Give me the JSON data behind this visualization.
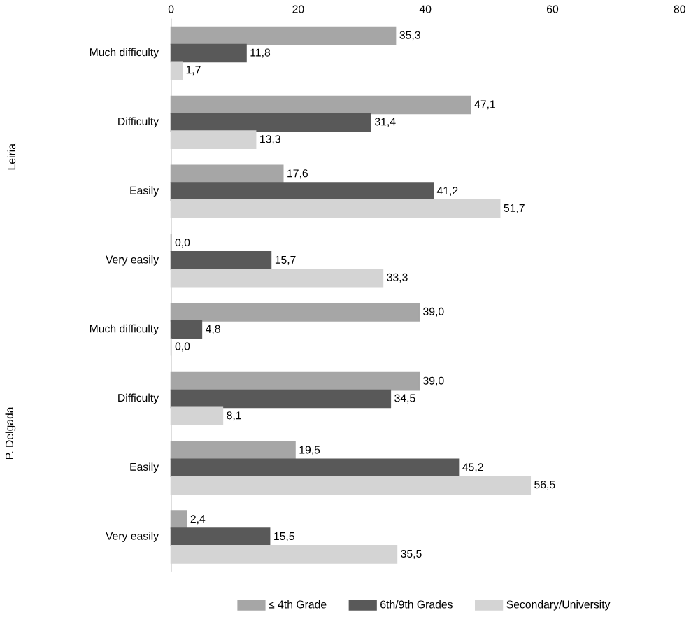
{
  "chart_data": {
    "type": "bar",
    "orientation": "horizontal",
    "categories": [
      "Much difficulty",
      "Difficulty",
      "Easily",
      "Very easily",
      "Much difficulty",
      "Difficulty",
      "Easily",
      "Very easily"
    ],
    "series": [
      {
        "name": "≤ 4th Grade",
        "color": "#a6a6a6",
        "values": [
          35.3,
          47.1,
          17.6,
          0.0,
          39.0,
          39.0,
          19.5,
          2.4
        ],
        "value_labels": [
          "35,3",
          "47,1",
          "17,6",
          "0,0",
          "39,0",
          "39,0",
          "19,5",
          "2,4"
        ]
      },
      {
        "name": "6th/9th Grades",
        "color": "#595959",
        "values": [
          11.8,
          31.4,
          41.2,
          15.7,
          4.8,
          34.5,
          45.2,
          15.5
        ],
        "value_labels": [
          "11,8",
          "31,4",
          "41,2",
          "15,7",
          "4,8",
          "34,5",
          "45,2",
          "15,5"
        ]
      },
      {
        "name": "Secondary/University",
        "color": "#d4d4d4",
        "values": [
          1.7,
          13.3,
          51.7,
          33.3,
          0.0,
          8.1,
          56.5,
          35.5
        ],
        "value_labels": [
          "1,7",
          "13,3",
          "51,7",
          "33,3",
          "0,0",
          "8,1",
          "56,5",
          "35,5"
        ]
      }
    ],
    "xlim": [
      0,
      80
    ],
    "xticks": [
      0,
      20,
      40,
      60,
      80
    ],
    "annotations": [
      "Leiria",
      "P. Delgada"
    ],
    "legend": "bottom"
  }
}
